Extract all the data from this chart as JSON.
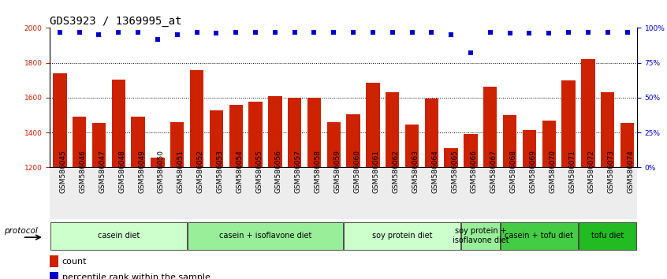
{
  "title": "GDS3923 / 1369995_at",
  "samples": [
    "GSM586045",
    "GSM586046",
    "GSM586047",
    "GSM586048",
    "GSM586049",
    "GSM586050",
    "GSM586051",
    "GSM586052",
    "GSM586053",
    "GSM586054",
    "GSM586055",
    "GSM586056",
    "GSM586057",
    "GSM586058",
    "GSM586059",
    "GSM586060",
    "GSM586061",
    "GSM586062",
    "GSM586063",
    "GSM586064",
    "GSM586065",
    "GSM586066",
    "GSM586067",
    "GSM586068",
    "GSM586069",
    "GSM586070",
    "GSM586071",
    "GSM586072",
    "GSM586073",
    "GSM586074"
  ],
  "counts": [
    1740,
    1490,
    1455,
    1705,
    1490,
    1255,
    1460,
    1760,
    1525,
    1560,
    1575,
    1610,
    1600,
    1600,
    1460,
    1505,
    1685,
    1630,
    1445,
    1595,
    1310,
    1390,
    1665,
    1500,
    1415,
    1470,
    1700,
    1820,
    1630,
    1455
  ],
  "percentile_ranks": [
    97,
    97,
    95,
    97,
    97,
    92,
    95,
    97,
    96,
    97,
    97,
    97,
    97,
    97,
    97,
    97,
    97,
    97,
    97,
    97,
    95,
    82,
    97,
    96,
    96,
    96,
    97,
    97,
    97,
    97
  ],
  "groups": [
    {
      "label": "casein diet",
      "start": 0,
      "end": 7,
      "color": "#ccffcc"
    },
    {
      "label": "casein + isoflavone diet",
      "start": 7,
      "end": 15,
      "color": "#99ee99"
    },
    {
      "label": "soy protein diet",
      "start": 15,
      "end": 21,
      "color": "#ccffcc"
    },
    {
      "label": "soy protein +\nisoflavone diet",
      "start": 21,
      "end": 23,
      "color": "#99ee99"
    },
    {
      "label": "casein + tofu diet",
      "start": 23,
      "end": 27,
      "color": "#44cc44"
    },
    {
      "label": "tofu diet",
      "start": 27,
      "end": 30,
      "color": "#22bb22"
    }
  ],
  "ylim_left": [
    1200,
    2000
  ],
  "ylim_right": [
    0,
    100
  ],
  "yticks_left": [
    1200,
    1400,
    1600,
    1800,
    2000
  ],
  "yticks_right": [
    0,
    25,
    50,
    75,
    100
  ],
  "bar_color": "#cc2200",
  "dot_color": "#0000cc",
  "grid_color": "#000000",
  "bg_color": "#ffffff",
  "title_fontsize": 10,
  "tick_fontsize": 6.5,
  "group_fontsize": 7,
  "left_ylabel_color": "#cc2200",
  "right_ylabel_color": "#0000cc"
}
